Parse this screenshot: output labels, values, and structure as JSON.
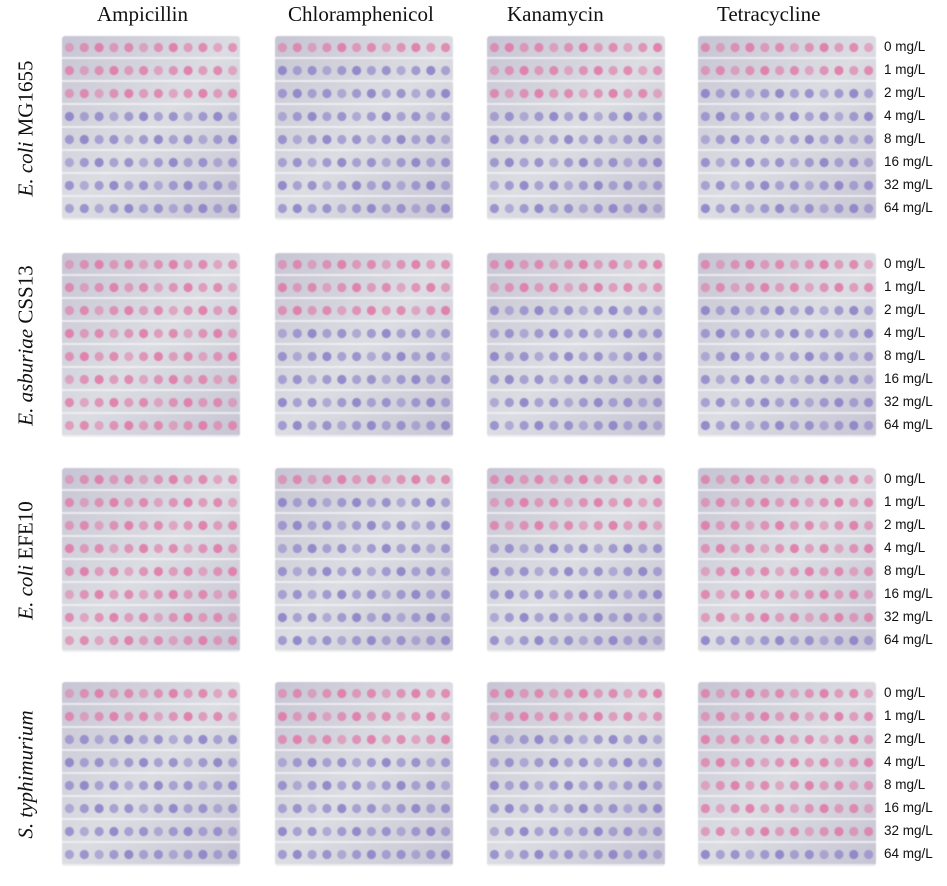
{
  "columns": [
    "Ampicillin",
    "Chloramphenicol",
    "Kanamycin",
    "Tetracycline"
  ],
  "rows": [
    {
      "species": "E. coli",
      "strain": "MG1655",
      "concentrations": [
        "0 mg/L",
        "1 mg/L",
        "2 mg/L",
        "4 mg/L",
        "8 mg/L",
        "16 mg/L",
        "32 mg/L",
        "64 mg/L"
      ],
      "panels": [
        {
          "well_colors": [
            "pink",
            "pink",
            "pink",
            "purple",
            "purple",
            "purple",
            "purple",
            "purple"
          ]
        },
        {
          "well_colors": [
            "pink",
            "purple",
            "purple",
            "purple",
            "purple",
            "purple",
            "purple",
            "purple"
          ]
        },
        {
          "well_colors": [
            "pink",
            "pink",
            "pink",
            "purple",
            "purple",
            "purple",
            "purple",
            "purple"
          ]
        },
        {
          "well_colors": [
            "pink",
            "pink",
            "purple",
            "purple",
            "purple",
            "purple",
            "purple",
            "purple"
          ]
        }
      ]
    },
    {
      "species": "E. asburiae",
      "strain": "CSS13",
      "concentrations": [
        "0 mg/L",
        "1 mg/L",
        "2 mg/L",
        "4 mg/L",
        "8 mg/L",
        "16 mg/L",
        "32 mg/L",
        "64 mg/L"
      ],
      "panels": [
        {
          "well_colors": [
            "pink",
            "pink",
            "pink",
            "pink",
            "pink",
            "pink",
            "pink",
            "pink"
          ]
        },
        {
          "well_colors": [
            "pink",
            "pink",
            "pink",
            "purple",
            "purple",
            "purple",
            "purple",
            "purple"
          ]
        },
        {
          "well_colors": [
            "pink",
            "pink",
            "purple",
            "purple",
            "purple",
            "purple",
            "purple",
            "purple"
          ]
        },
        {
          "well_colors": [
            "pink",
            "pink",
            "purple",
            "purple",
            "purple",
            "purple",
            "purple",
            "purple"
          ]
        }
      ]
    },
    {
      "species": "E. coli",
      "strain": "EFE10",
      "concentrations": [
        "0 mg/L",
        "1 mg/L",
        "2 mg/L",
        "4 mg/L",
        "8 mg/L",
        "16 mg/L",
        "32 mg/L",
        "64 mg/L"
      ],
      "panels": [
        {
          "well_colors": [
            "pink",
            "pink",
            "pink",
            "pink",
            "pink",
            "pink",
            "pink",
            "pink"
          ]
        },
        {
          "well_colors": [
            "pink",
            "purple",
            "purple",
            "purple",
            "purple",
            "purple",
            "purple",
            "purple"
          ]
        },
        {
          "well_colors": [
            "pink",
            "pink",
            "pink",
            "purple",
            "purple",
            "purple",
            "purple",
            "purple"
          ]
        },
        {
          "well_colors": [
            "pink",
            "pink",
            "pink",
            "pink",
            "pink",
            "pink",
            "pink",
            "purple"
          ]
        }
      ]
    },
    {
      "species": "S. typhimurium",
      "strain": "",
      "concentrations": [
        "0 mg/L",
        "1 mg/L",
        "2 mg/L",
        "4 mg/L",
        "8 mg/L",
        "16 mg/L",
        "32 mg/L",
        "64 mg/L"
      ],
      "panels": [
        {
          "well_colors": [
            "pink",
            "pink",
            "purple",
            "purple",
            "purple",
            "purple",
            "purple",
            "purple"
          ]
        },
        {
          "well_colors": [
            "pink",
            "pink",
            "pink",
            "purple",
            "purple",
            "purple",
            "purple",
            "purple"
          ]
        },
        {
          "well_colors": [
            "pink",
            "pink",
            "purple",
            "purple",
            "purple",
            "purple",
            "purple",
            "purple"
          ]
        },
        {
          "well_colors": [
            "pink",
            "pink",
            "pink",
            "pink",
            "pink",
            "pink",
            "pink",
            "purple"
          ]
        }
      ]
    }
  ],
  "colors": {
    "pink": "#e07aa8",
    "purple": "#8c82c8",
    "plate_light": "#dcdde3",
    "plate_dark": "#c7c5d4"
  }
}
